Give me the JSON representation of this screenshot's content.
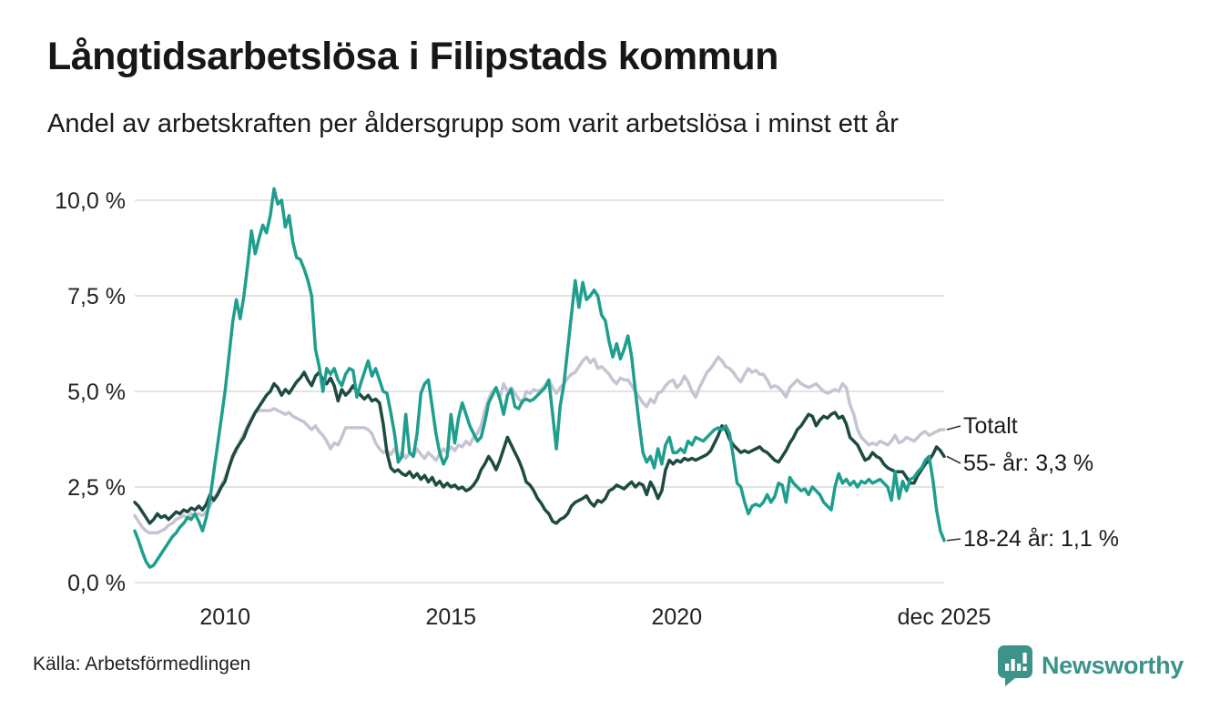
{
  "header": {
    "title": "Långtidsarbetslösa i Filipstads kommun",
    "subtitle": "Andel av arbetskraften per åldersgrupp som varit arbetslösa i minst ett år"
  },
  "footer": {
    "source": "Källa: Arbetsförmedlingen",
    "brand": "Newsworthy"
  },
  "colors": {
    "grid": "#e3e3e3",
    "axis_text": "#222222",
    "connector": "#333333",
    "brand_teal": "#3b938a"
  },
  "chart_data": {
    "type": "line",
    "title": "Långtidsarbetslösa i Filipstads kommun",
    "subtitle": "Andel av arbetskraften per åldersgrupp som varit arbetslösa i minst ett år",
    "frequency": "monthly",
    "x_start": "jan 2008",
    "x_end": "dec 2025",
    "x_range_years": [
      2008.0,
      2025.92
    ],
    "ylim": [
      0,
      10
    ],
    "grid": "horizontal-only",
    "y_ticks": [
      {
        "label": "0,0 %",
        "value": 0
      },
      {
        "label": "2,5 %",
        "value": 2.5
      },
      {
        "label": "5,0 %",
        "value": 5
      },
      {
        "label": "7,5 %",
        "value": 7.5
      },
      {
        "label": "10,0 %",
        "value": 10
      }
    ],
    "x_ticks": [
      {
        "label": "2010",
        "year": 2010
      },
      {
        "label": "2015",
        "year": 2015
      },
      {
        "label": "2020",
        "year": 2020
      },
      {
        "label": "dec 2025",
        "year": 2025.92
      }
    ],
    "series": [
      {
        "name": "Totalt",
        "end_label": "Totalt",
        "color": "#c6c4d2",
        "last_value": 4.0,
        "values": [
          1.75,
          1.6,
          1.45,
          1.35,
          1.3,
          1.3,
          1.3,
          1.35,
          1.4,
          1.5,
          1.55,
          1.65,
          1.7,
          1.75,
          1.7,
          1.8,
          1.75,
          1.8,
          1.75,
          1.85,
          2.0,
          2.2,
          2.35,
          2.55,
          2.75,
          3.0,
          3.25,
          3.45,
          3.7,
          3.9,
          4.1,
          4.3,
          4.45,
          4.5,
          4.5,
          4.5,
          4.5,
          4.55,
          4.5,
          4.45,
          4.4,
          4.45,
          4.35,
          4.3,
          4.25,
          4.2,
          4.1,
          4.0,
          4.1,
          3.95,
          3.85,
          3.7,
          3.5,
          3.65,
          3.6,
          3.8,
          4.05,
          4.05,
          4.05,
          4.05,
          4.05,
          4.05,
          4.0,
          3.9,
          3.65,
          3.5,
          3.4,
          3.45,
          3.35,
          3.5,
          3.3,
          3.4,
          3.25,
          3.4,
          3.3,
          3.5,
          3.35,
          3.25,
          3.4,
          3.3,
          3.2,
          3.35,
          3.5,
          3.4,
          3.55,
          3.45,
          3.6,
          3.55,
          3.7,
          3.6,
          3.8,
          3.9,
          4.1,
          4.5,
          4.8,
          5.0,
          5.1,
          4.85,
          5.2,
          5.0,
          5.1,
          4.95,
          4.8,
          4.7,
          5.0,
          4.95,
          5.05,
          5.0,
          5.05,
          5.15,
          5.3,
          5.1,
          4.95,
          5.1,
          5.2,
          5.35,
          5.45,
          5.5,
          5.65,
          5.8,
          5.9,
          5.75,
          5.85,
          5.6,
          5.65,
          5.55,
          5.45,
          5.3,
          5.2,
          5.35,
          5.3,
          5.3,
          5.15,
          5.0,
          4.85,
          4.7,
          4.6,
          4.8,
          4.7,
          4.95,
          5.0,
          5.15,
          5.25,
          5.3,
          5.1,
          5.2,
          5.4,
          5.25,
          5.0,
          4.85,
          5.1,
          5.3,
          5.5,
          5.6,
          5.75,
          5.9,
          5.8,
          5.65,
          5.6,
          5.5,
          5.35,
          5.25,
          5.45,
          5.6,
          5.5,
          5.55,
          5.45,
          5.45,
          5.3,
          5.1,
          5.15,
          5.1,
          5.0,
          4.85,
          5.1,
          5.2,
          5.3,
          5.2,
          5.15,
          5.1,
          5.15,
          5.2,
          5.1,
          5.0,
          4.95,
          5.0,
          5.05,
          5.0,
          5.2,
          5.1,
          4.65,
          4.4,
          4.0,
          3.8,
          3.7,
          3.6,
          3.65,
          3.6,
          3.7,
          3.65,
          3.6,
          3.7,
          3.85,
          3.65,
          3.7,
          3.8,
          3.75,
          3.7,
          3.8,
          3.9,
          3.95,
          3.85,
          3.9,
          3.95,
          4.0,
          4.0
        ]
      },
      {
        "name": "55- år",
        "end_label": "55- år: 3,3 %",
        "color": "#1d4b42",
        "last_value": 3.3,
        "values": [
          2.1,
          2.0,
          1.85,
          1.7,
          1.55,
          1.65,
          1.8,
          1.7,
          1.75,
          1.65,
          1.75,
          1.85,
          1.8,
          1.9,
          1.85,
          1.95,
          1.9,
          2.0,
          1.9,
          2.05,
          2.3,
          2.15,
          2.3,
          2.5,
          2.65,
          3.0,
          3.3,
          3.5,
          3.65,
          3.8,
          4.05,
          4.25,
          4.45,
          4.6,
          4.75,
          4.9,
          5.0,
          5.2,
          5.1,
          4.9,
          5.05,
          4.95,
          5.1,
          5.25,
          5.35,
          5.5,
          5.3,
          5.15,
          5.4,
          5.5,
          5.3,
          5.2,
          5.35,
          5.15,
          4.75,
          5.05,
          4.9,
          5.0,
          5.15,
          5.0,
          4.9,
          4.8,
          4.9,
          4.75,
          4.8,
          4.7,
          4.15,
          3.4,
          3.0,
          2.9,
          2.95,
          2.85,
          2.8,
          2.9,
          2.75,
          2.85,
          2.7,
          2.8,
          2.63,
          2.75,
          2.55,
          2.65,
          2.5,
          2.6,
          2.5,
          2.55,
          2.45,
          2.5,
          2.4,
          2.45,
          2.55,
          2.7,
          2.95,
          3.1,
          3.3,
          3.15,
          2.95,
          3.2,
          3.5,
          3.8,
          3.6,
          3.4,
          3.2,
          2.95,
          2.63,
          2.55,
          2.4,
          2.2,
          2.07,
          1.9,
          1.8,
          1.6,
          1.55,
          1.65,
          1.7,
          1.8,
          2.0,
          2.1,
          2.15,
          2.2,
          2.27,
          2.1,
          2.0,
          2.15,
          2.1,
          2.2,
          2.4,
          2.45,
          2.55,
          2.5,
          2.45,
          2.55,
          2.63,
          2.5,
          2.6,
          2.55,
          2.3,
          2.63,
          2.45,
          2.2,
          2.4,
          2.95,
          3.2,
          3.1,
          3.2,
          3.15,
          3.25,
          3.2,
          3.25,
          3.2,
          3.25,
          3.3,
          3.35,
          3.45,
          3.65,
          3.85,
          4.1,
          4.0,
          3.75,
          3.6,
          3.5,
          3.4,
          3.45,
          3.4,
          3.45,
          3.5,
          3.55,
          3.45,
          3.4,
          3.3,
          3.2,
          3.15,
          3.3,
          3.45,
          3.65,
          3.8,
          4.0,
          4.1,
          4.25,
          4.4,
          4.35,
          4.1,
          4.25,
          4.35,
          4.3,
          4.4,
          4.45,
          4.3,
          4.35,
          4.15,
          3.8,
          3.7,
          3.6,
          3.4,
          3.2,
          3.25,
          3.4,
          3.3,
          3.25,
          3.1,
          3.0,
          2.95,
          2.9,
          2.9,
          2.9,
          2.75,
          2.6,
          2.6,
          2.8,
          2.95,
          3.1,
          3.2,
          3.35,
          3.55,
          3.45,
          3.3
        ]
      },
      {
        "name": "18-24 år",
        "end_label": "18-24 år: 1,1 %",
        "color": "#1f9e8e",
        "last_value": 1.1,
        "values": [
          1.35,
          1.1,
          0.8,
          0.55,
          0.4,
          0.45,
          0.6,
          0.75,
          0.9,
          1.05,
          1.2,
          1.3,
          1.45,
          1.55,
          1.7,
          1.65,
          1.8,
          1.6,
          1.35,
          1.7,
          2.2,
          2.9,
          3.6,
          4.3,
          5.0,
          5.9,
          6.8,
          7.4,
          6.9,
          7.5,
          8.3,
          9.2,
          8.6,
          9.0,
          9.35,
          9.15,
          9.6,
          10.3,
          9.9,
          10.0,
          9.3,
          9.6,
          8.9,
          8.5,
          8.45,
          8.2,
          7.9,
          7.5,
          6.1,
          5.65,
          5.0,
          5.6,
          5.45,
          5.6,
          5.3,
          5.15,
          5.45,
          5.6,
          5.55,
          4.85,
          5.2,
          5.5,
          5.8,
          5.4,
          5.6,
          5.3,
          5.0,
          4.95,
          4.45,
          3.9,
          3.15,
          3.3,
          4.4,
          3.4,
          3.3,
          3.9,
          4.95,
          5.2,
          5.3,
          4.6,
          3.9,
          3.4,
          3.1,
          3.3,
          4.4,
          3.65,
          4.3,
          4.7,
          4.4,
          4.1,
          3.9,
          3.7,
          3.8,
          4.2,
          4.7,
          4.9,
          5.1,
          4.8,
          4.4,
          4.9,
          5.05,
          4.6,
          4.55,
          4.75,
          4.8,
          4.75,
          4.8,
          4.9,
          5.0,
          5.1,
          5.3,
          4.4,
          3.5,
          4.6,
          5.2,
          6.1,
          7.0,
          7.9,
          7.2,
          7.85,
          7.4,
          7.5,
          7.65,
          7.5,
          7.0,
          6.85,
          6.3,
          5.9,
          6.25,
          5.85,
          6.1,
          6.45,
          5.9,
          5.0,
          4.15,
          3.4,
          3.15,
          3.3,
          3.0,
          3.5,
          3.1,
          3.6,
          3.8,
          3.4,
          3.4,
          3.5,
          3.4,
          3.7,
          3.6,
          3.8,
          3.75,
          3.7,
          3.8,
          3.9,
          4.0,
          4.05,
          4.0,
          4.1,
          3.9,
          3.3,
          2.6,
          2.5,
          2.1,
          1.8,
          2.0,
          2.05,
          2.0,
          2.1,
          2.3,
          2.1,
          2.25,
          2.6,
          2.55,
          2.1,
          2.75,
          2.6,
          2.5,
          2.4,
          2.45,
          2.3,
          2.5,
          2.4,
          2.3,
          2.1,
          2.0,
          1.9,
          2.5,
          2.85,
          2.6,
          2.7,
          2.55,
          2.65,
          2.5,
          2.65,
          2.6,
          2.7,
          2.6,
          2.65,
          2.7,
          2.6,
          2.5,
          2.15,
          2.9,
          2.2,
          2.65,
          2.4,
          2.7,
          2.75,
          2.9,
          3.0,
          3.2,
          3.3,
          2.7,
          1.9,
          1.35,
          1.1
        ]
      }
    ]
  }
}
